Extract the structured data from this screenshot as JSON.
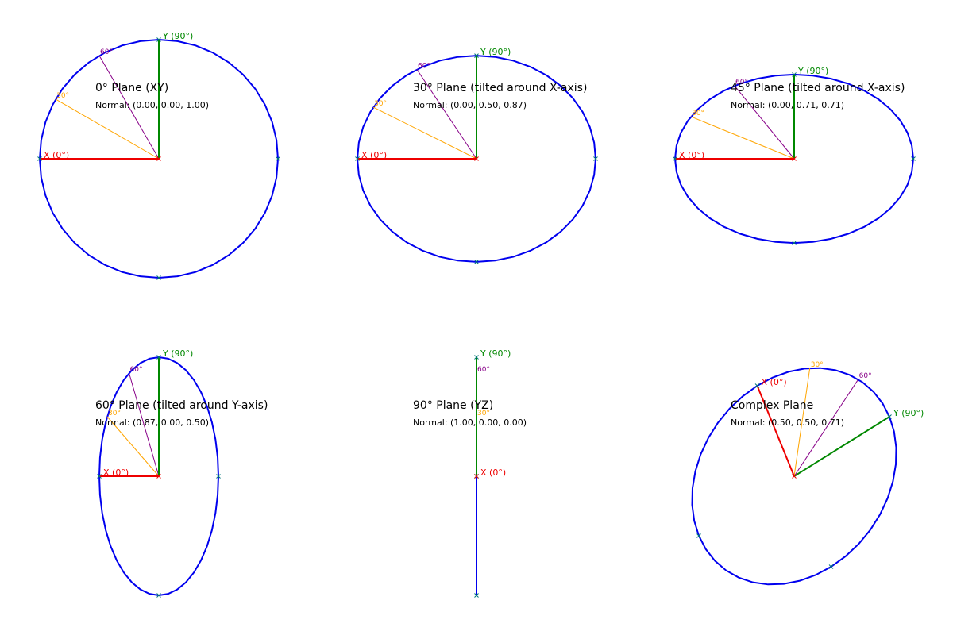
{
  "colors": {
    "background": "#ffffff",
    "circle": "#0000ee",
    "x_axis": "#ee0000",
    "y_axis": "#008800",
    "ray_30": "#ffa500",
    "ray_60": "#880088",
    "marker": "#007777",
    "text": "#000000"
  },
  "labels": {
    "x_axis": "X (0°)",
    "y_axis": "Y (90°)",
    "angle_30": "30°",
    "angle_60": "60°"
  },
  "planes": [
    {
      "title": "0° Plane (XY)",
      "normal_text": "Normal: (0.00, 0.00, 1.00)",
      "normal": [
        0.0,
        0.0,
        1.0
      ],
      "tilt_deg": 0,
      "tilt_axis": "X"
    },
    {
      "title": "30° Plane (tilted around X-axis)",
      "normal_text": "Normal: (0.00, 0.50, 0.87)",
      "normal": [
        0.0,
        0.5,
        0.87
      ],
      "tilt_deg": 30,
      "tilt_axis": "X"
    },
    {
      "title": "45° Plane (tilted around X-axis)",
      "normal_text": "Normal: (0.00, 0.71, 0.71)",
      "normal": [
        0.0,
        0.71,
        0.71
      ],
      "tilt_deg": 45,
      "tilt_axis": "X"
    },
    {
      "title": "60° Plane (tilted around Y-axis)",
      "normal_text": "Normal: (0.87, 0.00, 0.50)",
      "normal": [
        0.87,
        0.0,
        0.5
      ],
      "tilt_deg": 60,
      "tilt_axis": "Y"
    },
    {
      "title": "90° Plane (YZ)",
      "normal_text": "Normal: (1.00, 0.00, 0.00)",
      "normal": [
        1.0,
        0.0,
        0.0
      ],
      "tilt_deg": 90,
      "tilt_axis": "Y"
    },
    {
      "title": "Complex Plane",
      "normal_text": "Normal: (0.50, 0.50, 0.71)",
      "normal": [
        0.5,
        0.5,
        0.71
      ],
      "tilt_deg": null,
      "tilt_axis": "complex"
    }
  ]
}
